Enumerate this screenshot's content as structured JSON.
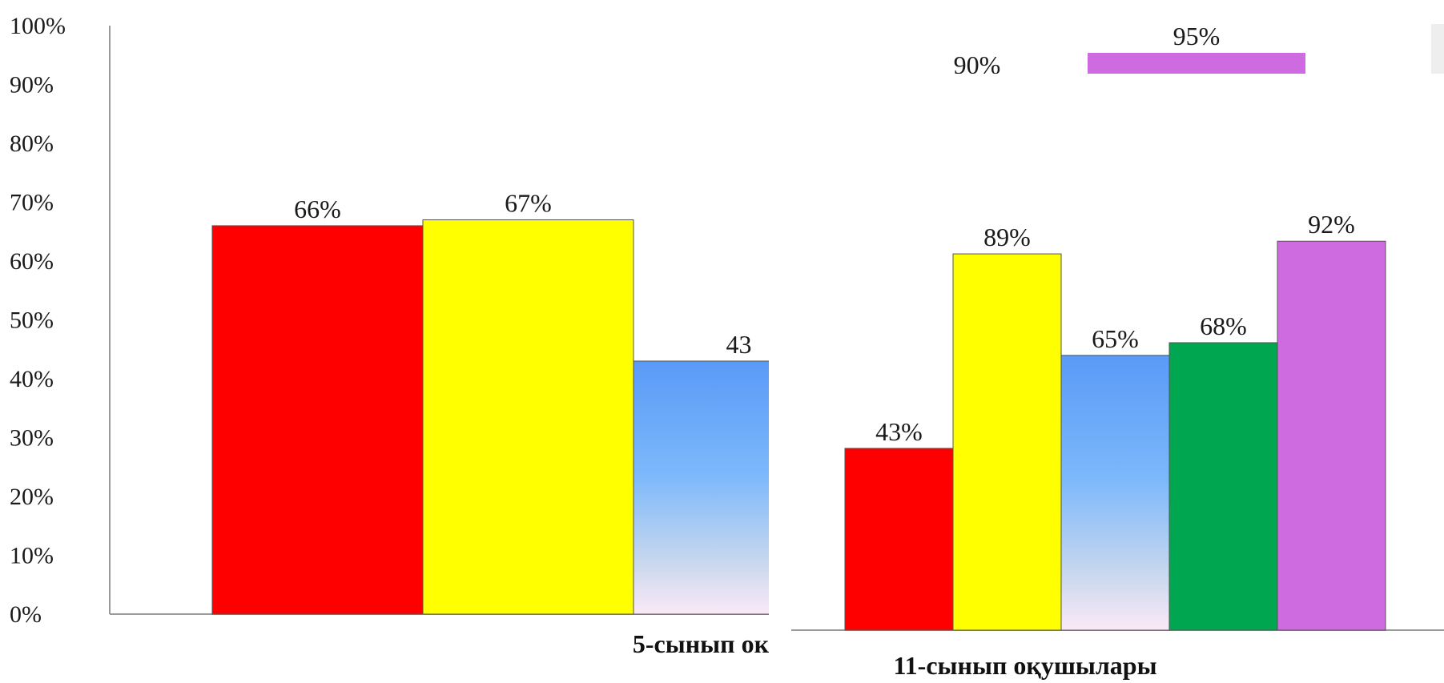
{
  "chart_data": [
    {
      "type": "bar",
      "ylim": [
        0,
        100
      ],
      "y_ticks": [
        "0%",
        "10%",
        "20%",
        "30%",
        "40%",
        "50%",
        "60%",
        "70%",
        "80%",
        "90%",
        "100%"
      ],
      "categories": [
        "5-сынып ок"
      ],
      "series": [
        {
          "color": "#ff0000",
          "values": [
            66
          ],
          "label": "66%"
        },
        {
          "color": "#ffff00",
          "values": [
            67
          ],
          "label": "67%"
        },
        {
          "color": "gradient-blue",
          "values": [
            43
          ],
          "label": "43"
        }
      ],
      "grid": false
    },
    {
      "type": "bar",
      "categories": [
        "11-сынып  оқушылары"
      ],
      "series": [
        {
          "color": "#ff0000",
          "values": [
            43
          ],
          "label": "43%"
        },
        {
          "color": "#ffff00",
          "values": [
            89
          ],
          "label": "89%"
        },
        {
          "color": "gradient-blue",
          "values": [
            65
          ],
          "label": "65%"
        },
        {
          "color": "#00a650",
          "values": [
            68
          ],
          "label": "68%"
        },
        {
          "color": "#cf6be0",
          "values": [
            92
          ],
          "label": "92%"
        }
      ],
      "fragment_labels": [
        "90%",
        "95%"
      ],
      "grid": false
    }
  ]
}
